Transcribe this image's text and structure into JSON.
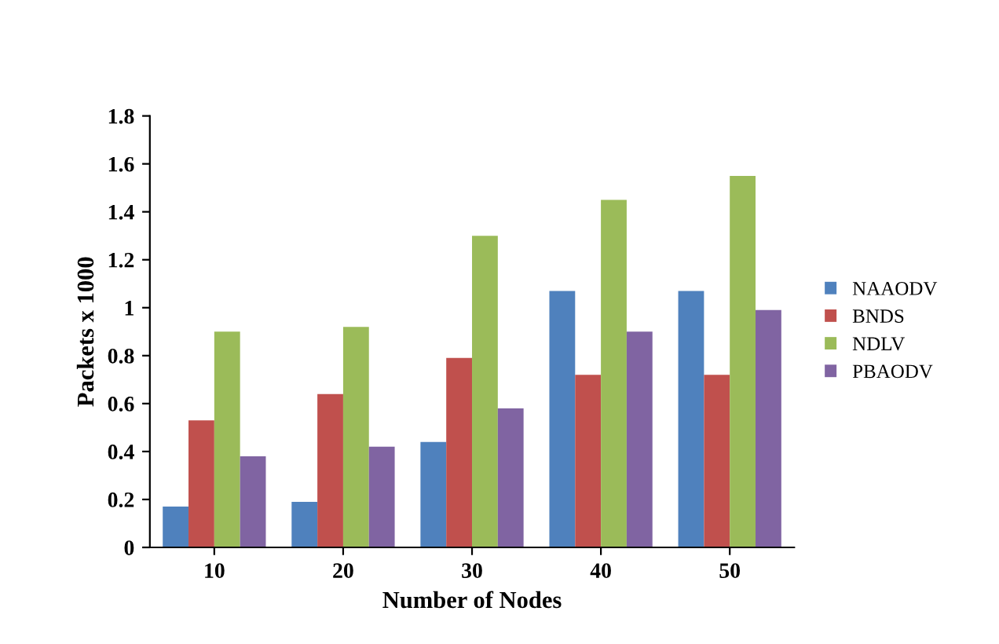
{
  "chart_data": {
    "type": "bar",
    "xlabel": "Number of Nodes",
    "ylabel": "Packets x 1000",
    "categories": [
      "10",
      "20",
      "30",
      "40",
      "50"
    ],
    "series": [
      {
        "name": "NAAODV",
        "color": "#4f81bd",
        "values": [
          0.17,
          0.19,
          0.44,
          1.07,
          1.07
        ]
      },
      {
        "name": "BNDS",
        "color": "#c0504d",
        "values": [
          0.53,
          0.64,
          0.79,
          0.72,
          0.72
        ]
      },
      {
        "name": "NDLV",
        "color": "#9bbb59",
        "values": [
          0.9,
          0.92,
          1.3,
          1.45,
          1.55
        ]
      },
      {
        "name": "PBAODV",
        "color": "#8064a2",
        "values": [
          0.38,
          0.42,
          0.58,
          0.9,
          0.99
        ]
      }
    ],
    "ylim": [
      0,
      1.8
    ],
    "yticks": [
      0,
      0.2,
      0.4,
      0.6,
      0.8,
      1,
      1.2,
      1.4,
      1.6,
      1.8
    ],
    "grid": false,
    "legend": "right"
  }
}
